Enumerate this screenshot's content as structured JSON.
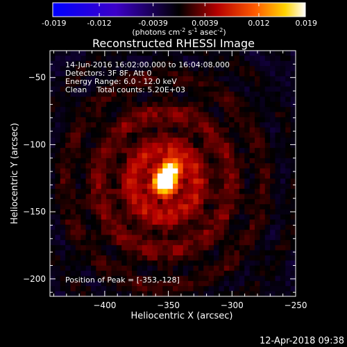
{
  "chart_data": {
    "type": "heatmap",
    "title": "Reconstructed RHESSI Image",
    "xlabel": "Heliocentric X (arcsec)",
    "ylabel": "Heliocentric Y (arcsec)",
    "xlim": [
      -443,
      -250
    ],
    "ylim": [
      -213,
      -30
    ],
    "xticks": [
      -400,
      -350,
      -300,
      -250
    ],
    "yticks": [
      -50,
      -100,
      -150,
      -200
    ],
    "colorbar": {
      "ticks": [
        "-0.019",
        "-0.012",
        "-0.0039",
        "0.0039",
        "0.012",
        "0.019"
      ],
      "range": [
        -0.019,
        0.019
      ],
      "unit_label": {
        "prefix": "(photons cm",
        "exp1": "-2",
        "mid1": " s",
        "exp2": "-1",
        "mid2": " asec",
        "exp3": "-2",
        "suffix": ")"
      }
    },
    "annotations": [
      "14-Jun-2016 16:02:00.000 to 16:04:08.000",
      "Detectors: 3F 8F, Att 0",
      "Energy Range: 6.0 - 12.0 keV",
      "Clean    Total counts: 5.20E+03"
    ],
    "peak_label": "Position of Peak = [-353,-128]",
    "peak": {
      "x": -353,
      "y": -128,
      "value": 0.019
    },
    "secondary_peak": {
      "x": -347,
      "y": -118,
      "value": 0.015
    },
    "grid": false
  },
  "footer": {
    "timestamp": "12-Apr-2018 09:38"
  }
}
